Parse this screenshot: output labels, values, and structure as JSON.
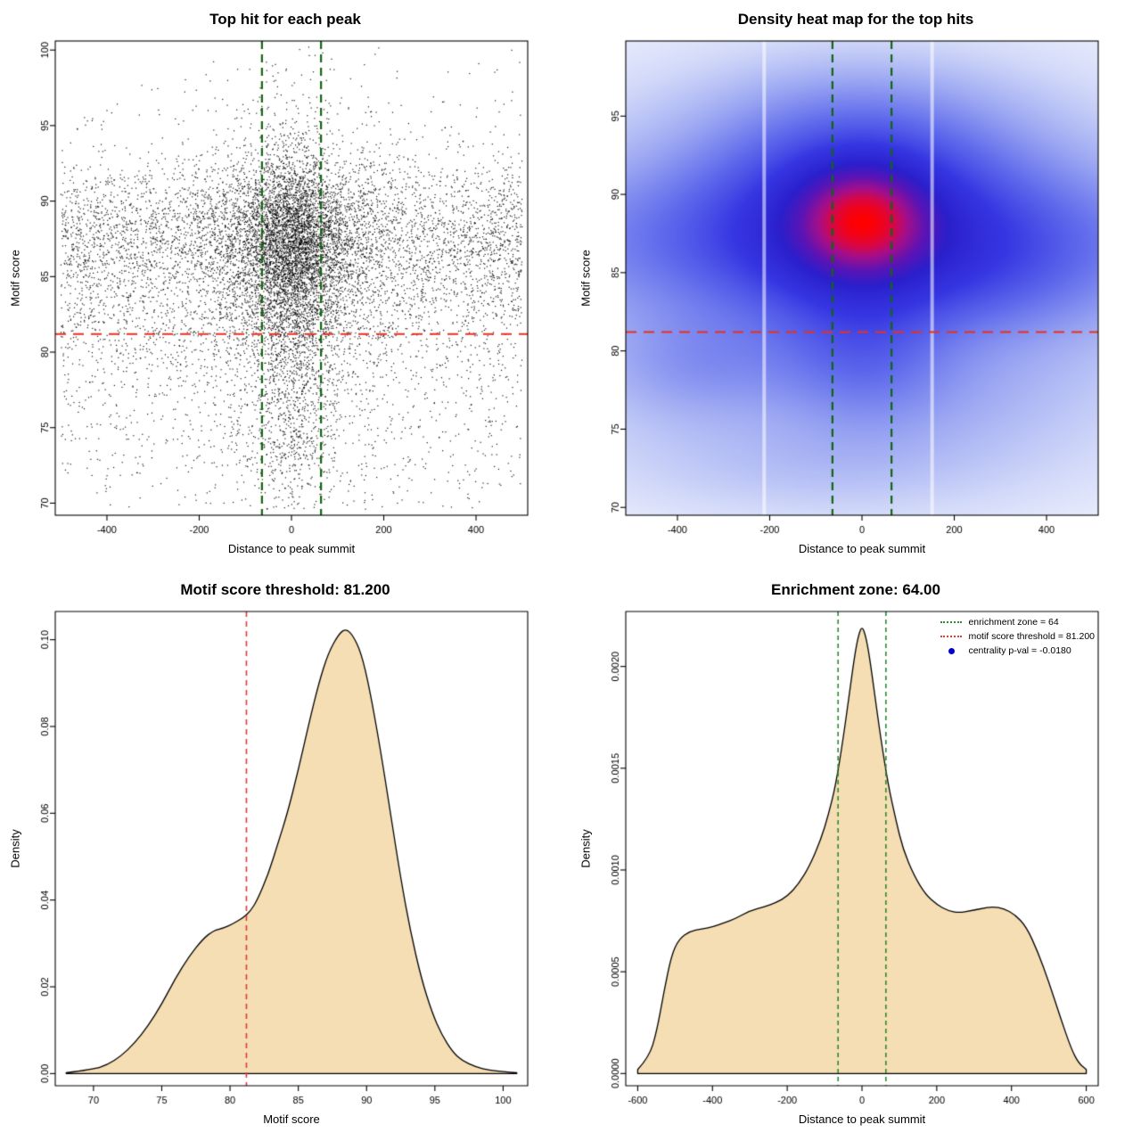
{
  "figure": {
    "background": "#ffffff"
  },
  "chart_data": [
    {
      "type": "scatter",
      "title": "Top hit for each peak",
      "xlabel": "Distance to peak summit",
      "ylabel": "Motif score",
      "xlim": [
        -512,
        512
      ],
      "ylim": [
        69.2,
        100.6
      ],
      "xticks": [
        [
          -400,
          "-400"
        ],
        [
          -200,
          "-200"
        ],
        [
          0,
          "0"
        ],
        [
          200,
          "200"
        ],
        [
          400,
          "400"
        ]
      ],
      "yticks": [
        [
          70,
          "70"
        ],
        [
          75,
          "75"
        ],
        [
          80,
          "80"
        ],
        [
          85,
          "85"
        ],
        [
          90,
          "90"
        ],
        [
          95,
          "95"
        ],
        [
          100,
          "100"
        ]
      ],
      "n_points": 12500,
      "seed": 7,
      "point_color": "#000000",
      "x_dist": {
        "uniform_frac": 0.5,
        "cluster_sigma": 95,
        "tight_frac": 0.38,
        "tight_sigma": 45,
        "range": [
          -500,
          500
        ]
      },
      "y_dist": {
        "components": [
          {
            "frac": 0.55,
            "mean": 87.8,
            "sd": 2.6
          },
          {
            "frac": 0.22,
            "mean": 83.5,
            "sd": 2.8
          },
          {
            "frac": 0.1,
            "mean": 78.5,
            "sd": 3.0
          },
          {
            "frac": 0.05,
            "mean": 73.5,
            "sd": 2.2
          },
          {
            "frac": 0.08,
            "mean": 90.0,
            "sd": 4.5
          }
        ],
        "min": 69.6,
        "max": 100.2
      },
      "vlines": [
        {
          "x": -64,
          "color": "#116611",
          "width": 2.2,
          "dash": [
            9,
            6
          ]
        },
        {
          "x": 64,
          "color": "#116611",
          "width": 2.2,
          "dash": [
            9,
            6
          ]
        }
      ],
      "hlines": [
        {
          "y": 81.2,
          "color": "#e33322",
          "width": 2,
          "dash": [
            12,
            8
          ]
        }
      ]
    },
    {
      "type": "heatmap",
      "title": "Density heat map for the top hits",
      "xlabel": "Distance to peak summit",
      "ylabel": "Motif score",
      "xlim": [
        -512,
        512
      ],
      "ylim": [
        69.5,
        99.8
      ],
      "xticks": [
        [
          -400,
          "-400"
        ],
        [
          -200,
          "-200"
        ],
        [
          0,
          "0"
        ],
        [
          200,
          "200"
        ],
        [
          400,
          "400"
        ]
      ],
      "yticks": [
        [
          70,
          "70"
        ],
        [
          75,
          "75"
        ],
        [
          80,
          "80"
        ],
        [
          85,
          "85"
        ],
        [
          90,
          "90"
        ],
        [
          95,
          "95"
        ]
      ],
      "gamma": 0.5,
      "density_center": {
        "x": 0,
        "y": 88.4
      },
      "blobs": [
        {
          "x": 0,
          "y": 88.4,
          "sx": 90,
          "sy": 2.2,
          "w": 1.0
        },
        {
          "x": 0,
          "y": 88.0,
          "sx": 200,
          "sy": 3.6,
          "w": 0.55
        },
        {
          "x": 0,
          "y": 87.2,
          "sx": 470,
          "sy": 3.2,
          "w": 0.32
        },
        {
          "x": 0,
          "y": 92.8,
          "sx": 240,
          "sy": 2.6,
          "w": 0.16
        },
        {
          "x": 0,
          "y": 95.8,
          "sx": 200,
          "sy": 2.2,
          "w": 0.07
        },
        {
          "x": 0,
          "y": 80.5,
          "sx": 120,
          "sy": 3.2,
          "w": 0.22
        },
        {
          "x": -340,
          "y": 79.2,
          "sx": 150,
          "sy": 2.4,
          "w": 0.13
        },
        {
          "x": 300,
          "y": 85.0,
          "sx": 170,
          "sy": 3.0,
          "w": 0.1
        },
        {
          "x": -80,
          "y": 73.0,
          "sx": 280,
          "sy": 2.2,
          "w": 0.055
        },
        {
          "x": 150,
          "y": 77.5,
          "sx": 200,
          "sy": 2.5,
          "w": 0.06
        },
        {
          "x": 0,
          "y": 85.0,
          "sx": 520,
          "sy": 8.0,
          "w": 0.14
        }
      ],
      "colormap": [
        [
          0.0,
          "#ffffff"
        ],
        [
          0.06,
          "#f0f3fe"
        ],
        [
          0.14,
          "#d3daf9"
        ],
        [
          0.28,
          "#9aa6f2"
        ],
        [
          0.42,
          "#5f6aec"
        ],
        [
          0.55,
          "#3636e2"
        ],
        [
          0.68,
          "#2a20cc"
        ],
        [
          0.78,
          "#5c14b5"
        ],
        [
          0.87,
          "#a50f8a"
        ],
        [
          0.93,
          "#d80747"
        ],
        [
          1.0,
          "#ff0000"
        ]
      ],
      "gap_lines": [
        -212,
        152
      ],
      "vlines": [
        {
          "x": -64,
          "color": "#116611",
          "width": 2.2,
          "dash": [
            9,
            6
          ]
        },
        {
          "x": 64,
          "color": "#116611",
          "width": 2.2,
          "dash": [
            9,
            6
          ]
        }
      ],
      "hlines": [
        {
          "y": 81.2,
          "color": "#e33322",
          "width": 2,
          "dash": [
            12,
            8
          ]
        }
      ]
    },
    {
      "type": "density",
      "title": "Motif score threshold: 81.200",
      "xlabel": "Motif score",
      "ylabel": "Density",
      "xlim": [
        67.2,
        101.8
      ],
      "ylim": [
        -0.0028,
        0.1065
      ],
      "xticks": [
        [
          70,
          "70"
        ],
        [
          75,
          "75"
        ],
        [
          80,
          "80"
        ],
        [
          85,
          "85"
        ],
        [
          90,
          "90"
        ],
        [
          95,
          "95"
        ],
        [
          100,
          "100"
        ]
      ],
      "yticks": [
        [
          0,
          "0.00"
        ],
        [
          0.02,
          "0.02"
        ],
        [
          0.04,
          "0.04"
        ],
        [
          0.06,
          "0.06"
        ],
        [
          0.08,
          "0.08"
        ],
        [
          0.1,
          "0.10"
        ]
      ],
      "fill": "#f5deb3",
      "stroke": "#000000",
      "curve": [
        [
          68,
          0.0002
        ],
        [
          70,
          0.001
        ],
        [
          71,
          0.002
        ],
        [
          72,
          0.004
        ],
        [
          73,
          0.007
        ],
        [
          74,
          0.011
        ],
        [
          75,
          0.016
        ],
        [
          76,
          0.022
        ],
        [
          77,
          0.027
        ],
        [
          78,
          0.031
        ],
        [
          78.8,
          0.033
        ],
        [
          79.5,
          0.0335
        ],
        [
          80.2,
          0.0345
        ],
        [
          81,
          0.036
        ],
        [
          81.5,
          0.0375
        ],
        [
          82,
          0.04
        ],
        [
          82.8,
          0.046
        ],
        [
          83.5,
          0.053
        ],
        [
          84.2,
          0.06
        ],
        [
          85,
          0.07
        ],
        [
          85.8,
          0.081
        ],
        [
          86.5,
          0.09
        ],
        [
          87.2,
          0.097
        ],
        [
          88,
          0.1015
        ],
        [
          88.5,
          0.1025
        ],
        [
          89,
          0.101
        ],
        [
          89.6,
          0.097
        ],
        [
          90.2,
          0.089
        ],
        [
          91,
          0.075
        ],
        [
          91.8,
          0.059
        ],
        [
          92.5,
          0.045
        ],
        [
          93.2,
          0.033
        ],
        [
          94,
          0.022
        ],
        [
          94.8,
          0.014
        ],
        [
          95.5,
          0.009
        ],
        [
          96.3,
          0.005
        ],
        [
          97,
          0.003
        ],
        [
          98,
          0.0015
        ],
        [
          99,
          0.0008
        ],
        [
          100,
          0.0004
        ],
        [
          101,
          0.0002
        ]
      ],
      "vlines": [
        {
          "x": 81.2,
          "color": "#dd3c32",
          "width": 1.6,
          "dash": [
            6,
            5
          ]
        }
      ]
    },
    {
      "type": "density",
      "title": "Enrichment zone: 64.00",
      "xlabel": "Distance to peak summit",
      "ylabel": "Density",
      "xlim": [
        -632,
        632
      ],
      "ylim": [
        -6e-05,
        0.00227
      ],
      "xticks": [
        [
          -600,
          "-600"
        ],
        [
          -400,
          "-400"
        ],
        [
          -200,
          "-200"
        ],
        [
          0,
          "0"
        ],
        [
          200,
          "200"
        ],
        [
          400,
          "400"
        ],
        [
          600,
          "600"
        ]
      ],
      "yticks": [
        [
          0,
          "0.0000"
        ],
        [
          0.0005,
          "0.0005"
        ],
        [
          0.001,
          "0.0010"
        ],
        [
          0.0015,
          "0.0015"
        ],
        [
          0.002,
          "0.0020"
        ]
      ],
      "fill": "#f5deb3",
      "stroke": "#000000",
      "curve": [
        [
          -600,
          2e-05
        ],
        [
          -570,
          8e-05
        ],
        [
          -550,
          0.0002
        ],
        [
          -530,
          0.0004
        ],
        [
          -510,
          0.00058
        ],
        [
          -490,
          0.00066
        ],
        [
          -460,
          0.0007
        ],
        [
          -430,
          0.00071
        ],
        [
          -400,
          0.00072
        ],
        [
          -370,
          0.00074
        ],
        [
          -340,
          0.00076
        ],
        [
          -300,
          0.0008
        ],
        [
          -260,
          0.00082
        ],
        [
          -230,
          0.00084
        ],
        [
          -200,
          0.00087
        ],
        [
          -170,
          0.00093
        ],
        [
          -140,
          0.00102
        ],
        [
          -110,
          0.00115
        ],
        [
          -90,
          0.00127
        ],
        [
          -70,
          0.00142
        ],
        [
          -50,
          0.00165
        ],
        [
          -35,
          0.00185
        ],
        [
          -20,
          0.00205
        ],
        [
          -10,
          0.00215
        ],
        [
          0,
          0.0022
        ],
        [
          10,
          0.00215
        ],
        [
          20,
          0.00205
        ],
        [
          35,
          0.00185
        ],
        [
          50,
          0.00165
        ],
        [
          70,
          0.00142
        ],
        [
          90,
          0.00125
        ],
        [
          110,
          0.0011
        ],
        [
          140,
          0.00097
        ],
        [
          170,
          0.00088
        ],
        [
          200,
          0.00083
        ],
        [
          230,
          0.0008
        ],
        [
          260,
          0.00079
        ],
        [
          290,
          0.0008
        ],
        [
          320,
          0.00081
        ],
        [
          350,
          0.00082
        ],
        [
          380,
          0.00081
        ],
        [
          410,
          0.00078
        ],
        [
          440,
          0.00072
        ],
        [
          470,
          0.0006
        ],
        [
          500,
          0.00045
        ],
        [
          530,
          0.00028
        ],
        [
          560,
          0.00012
        ],
        [
          580,
          5e-05
        ],
        [
          600,
          2e-05
        ]
      ],
      "vlines": [
        {
          "x": -64,
          "color": "#2d8a2d",
          "width": 1.6,
          "dash": [
            5,
            4
          ]
        },
        {
          "x": 64,
          "color": "#2d8a2d",
          "width": 1.6,
          "dash": [
            5,
            4
          ]
        }
      ],
      "legend": {
        "items": [
          {
            "type": "line",
            "color": "#2d8a2d",
            "label": "enrichment zone = 64"
          },
          {
            "type": "line",
            "color": "#dd3c32",
            "label": "motif score threshold = 81.200"
          },
          {
            "type": "point",
            "color": "#0000cd",
            "label": "centrality p-val = -0.0180"
          }
        ]
      }
    }
  ]
}
